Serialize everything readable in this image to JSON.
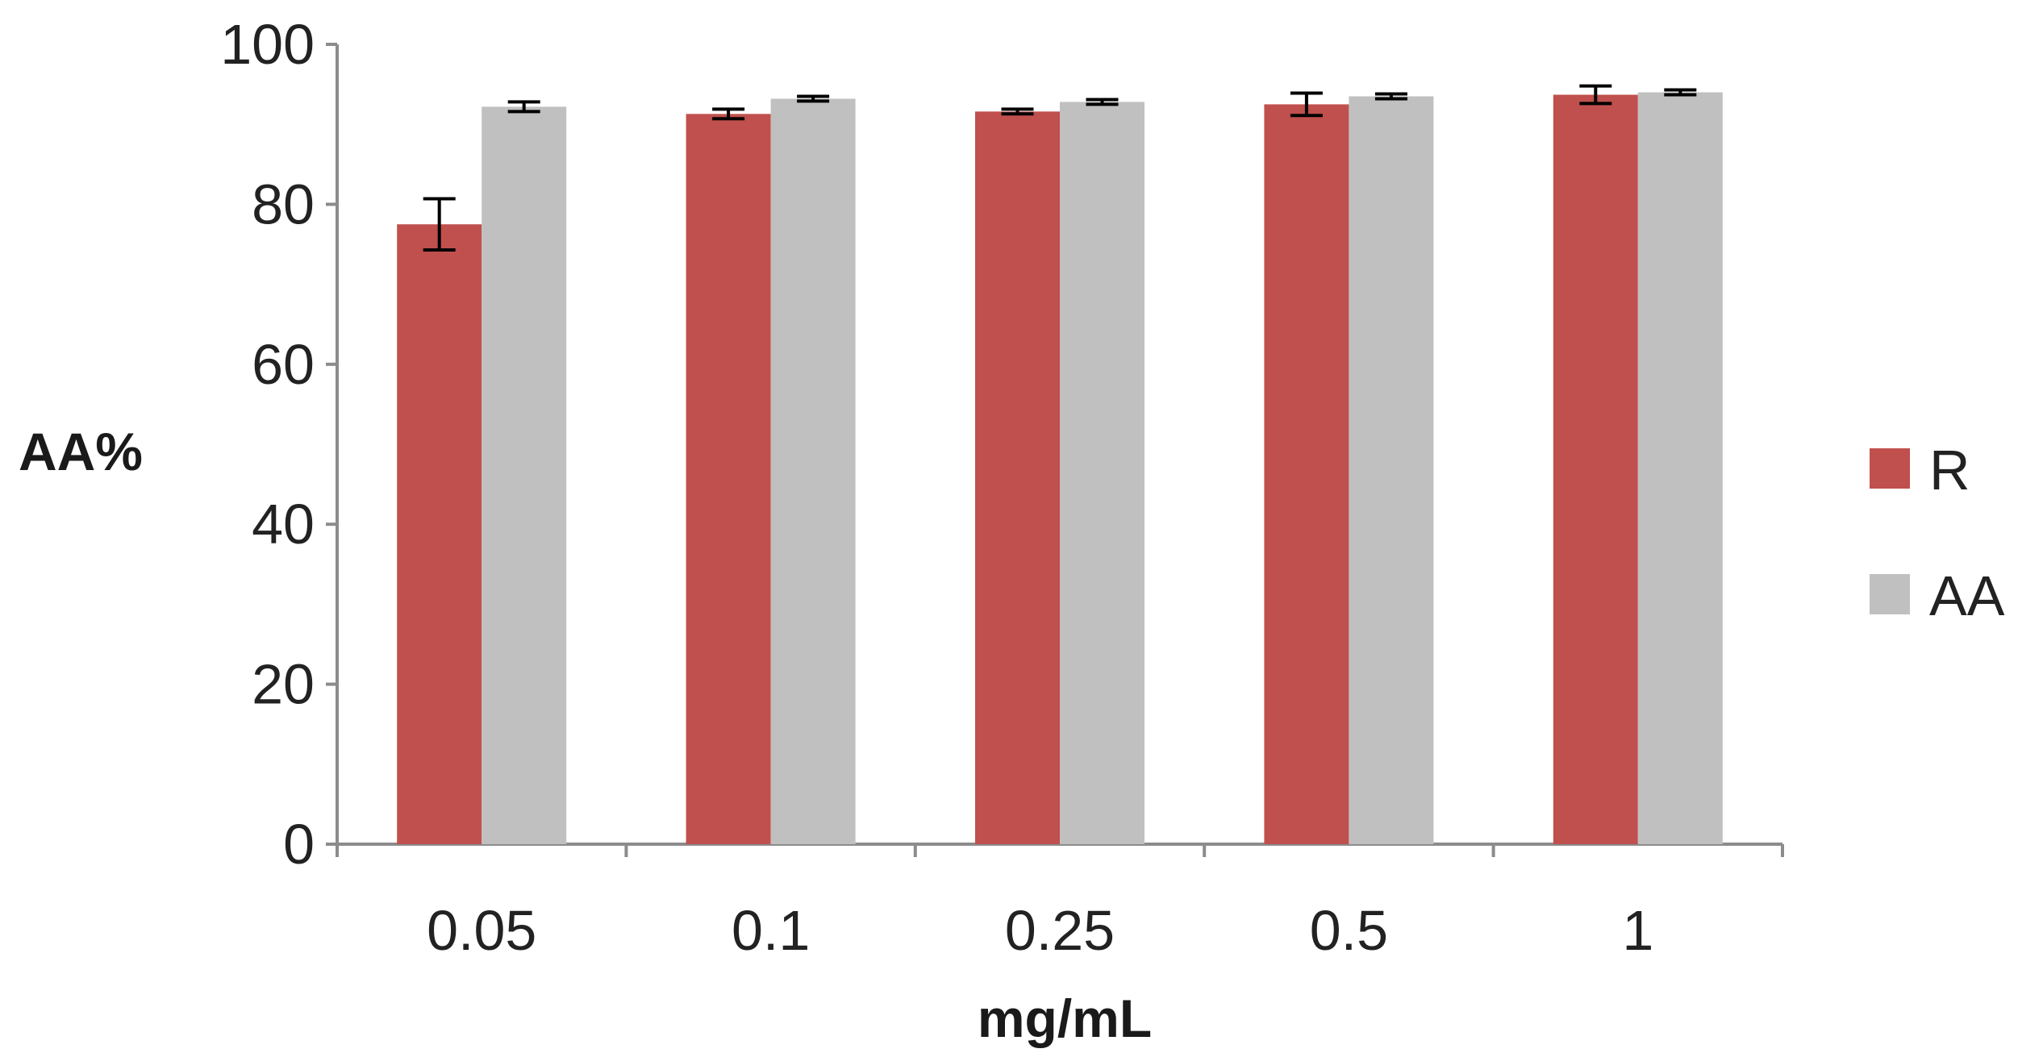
{
  "chart_data": {
    "type": "bar",
    "title": "",
    "xlabel": "mg/mL",
    "ylabel": "AA%",
    "ylim": [
      0,
      100
    ],
    "yticks": [
      0,
      20,
      40,
      60,
      80,
      100
    ],
    "categories": [
      "0.05",
      "0.1",
      "0.25",
      "0.5",
      "1"
    ],
    "series": [
      {
        "name": "R",
        "color": "#c0504d",
        "values": [
          77.5,
          91.3,
          91.6,
          92.5,
          93.7
        ],
        "errors": [
          3.2,
          0.6,
          0.3,
          1.4,
          1.1
        ]
      },
      {
        "name": "AA",
        "color": "#c0c0c0",
        "values": [
          92.2,
          93.2,
          92.8,
          93.5,
          94.0
        ],
        "errors": [
          0.6,
          0.3,
          0.3,
          0.3,
          0.3
        ]
      }
    ],
    "legend_position": "right",
    "grid": false,
    "axis_color": "#8c8c8c",
    "errorbar_color": "#000000"
  }
}
